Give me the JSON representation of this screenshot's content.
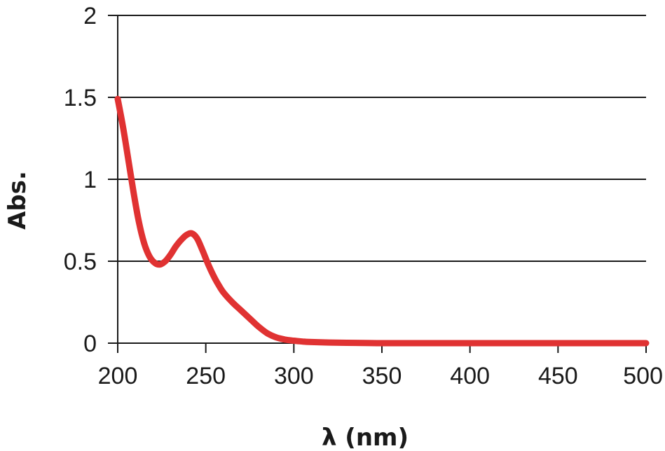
{
  "chart_data": {
    "type": "line",
    "title": "",
    "xlabel": "λ (nm)",
    "ylabel": "Abs.",
    "xlim": [
      200,
      500
    ],
    "ylim": [
      0,
      2
    ],
    "xticks": [
      200,
      250,
      300,
      350,
      400,
      450,
      500
    ],
    "yticks": [
      0,
      0.5,
      1,
      1.5,
      2
    ],
    "ytick_labels": [
      "0",
      "0.5",
      "1",
      "1.5",
      "2"
    ],
    "grid": "horizontal",
    "series": [
      {
        "color": "#e03232",
        "x": [
          200,
          203,
          206,
          209,
          212,
          215,
          218,
          221,
          224,
          227,
          230,
          233,
          236,
          239,
          242,
          245,
          248,
          251,
          254,
          257,
          260,
          265,
          270,
          275,
          280,
          285,
          290,
          295,
          300,
          305,
          310,
          320,
          330,
          340,
          350,
          370,
          400,
          450,
          500
        ],
        "y": [
          1.49,
          1.32,
          1.12,
          0.92,
          0.74,
          0.61,
          0.53,
          0.49,
          0.48,
          0.5,
          0.54,
          0.59,
          0.63,
          0.66,
          0.67,
          0.64,
          0.57,
          0.49,
          0.42,
          0.36,
          0.31,
          0.25,
          0.2,
          0.15,
          0.1,
          0.06,
          0.035,
          0.022,
          0.015,
          0.01,
          0.007,
          0.004,
          0.002,
          0.001,
          0.0,
          0.0,
          0.0,
          0.0,
          0.0
        ]
      }
    ]
  }
}
